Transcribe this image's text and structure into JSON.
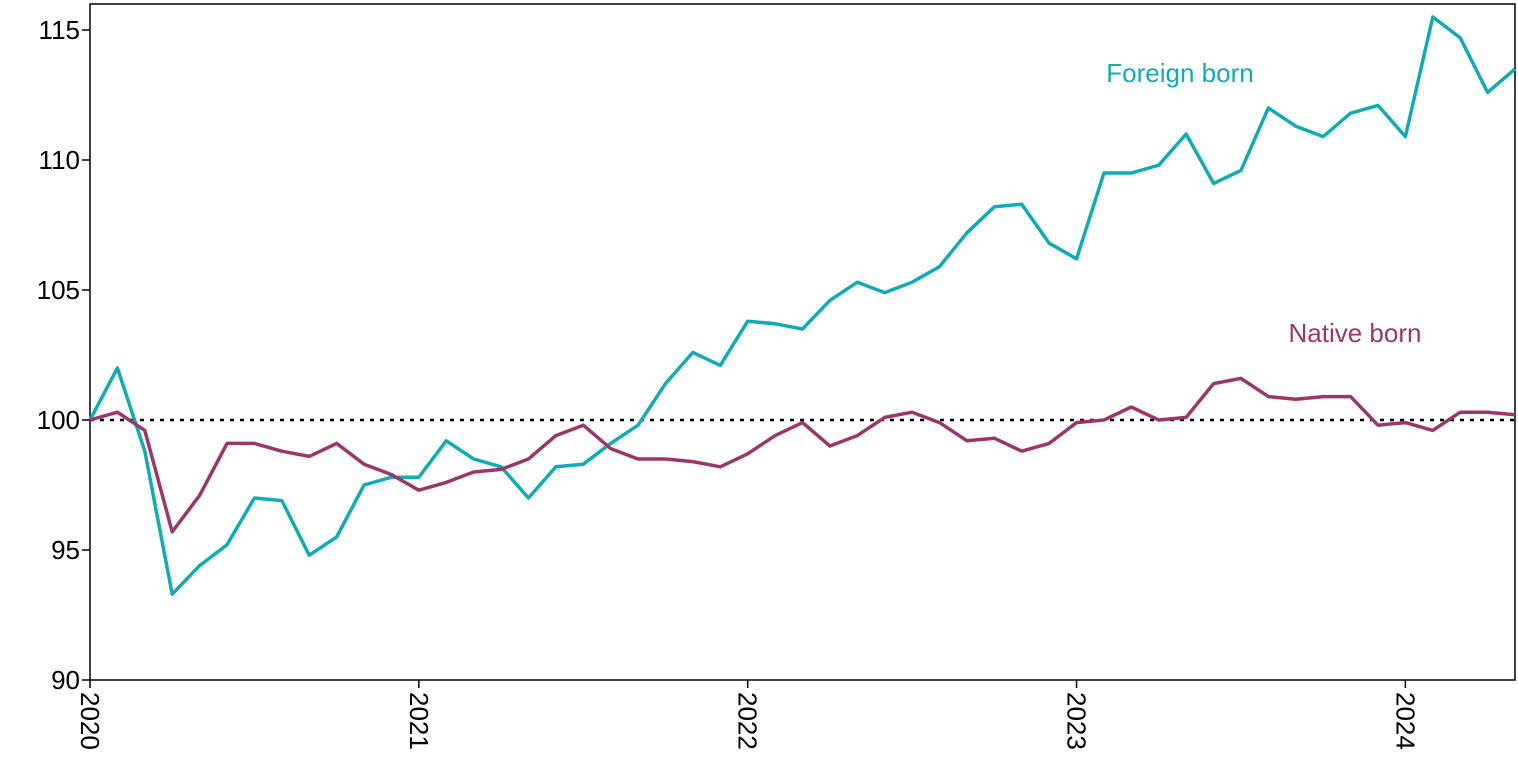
{
  "chart_data": {
    "type": "line",
    "x": [
      "2020-01",
      "2020-02",
      "2020-03",
      "2020-04",
      "2020-05",
      "2020-06",
      "2020-07",
      "2020-08",
      "2020-09",
      "2020-10",
      "2020-11",
      "2020-12",
      "2021-01",
      "2021-02",
      "2021-03",
      "2021-04",
      "2021-05",
      "2021-06",
      "2021-07",
      "2021-08",
      "2021-09",
      "2021-10",
      "2021-11",
      "2021-12",
      "2022-01",
      "2022-02",
      "2022-03",
      "2022-04",
      "2022-05",
      "2022-06",
      "2022-07",
      "2022-08",
      "2022-09",
      "2022-10",
      "2022-11",
      "2022-12",
      "2023-01",
      "2023-02",
      "2023-03",
      "2023-04",
      "2023-05",
      "2023-06",
      "2023-07",
      "2023-08",
      "2023-09",
      "2023-10",
      "2023-11",
      "2023-12",
      "2024-01",
      "2024-02",
      "2024-03",
      "2024-04",
      "2024-05"
    ],
    "series": [
      {
        "name": "Foreign born",
        "color": "#12aab5",
        "values": [
          100,
          102.0,
          98.8,
          93.3,
          94.4,
          95.2,
          97.0,
          96.9,
          94.8,
          95.5,
          97.5,
          97.8,
          97.8,
          99.2,
          98.5,
          98.2,
          97.0,
          98.2,
          98.3,
          99.1,
          99.8,
          101.4,
          102.6,
          102.1,
          103.8,
          103.7,
          103.5,
          104.6,
          105.3,
          104.9,
          105.3,
          105.9,
          107.2,
          108.2,
          108.3,
          106.8,
          106.2,
          109.5,
          109.5,
          109.8,
          111.0,
          109.1,
          109.6,
          112.0,
          111.3,
          110.9,
          111.8,
          112.1,
          110.9,
          115.5,
          114.7,
          112.6,
          113.5
        ]
      },
      {
        "name": "Native born",
        "color": "#9b3768",
        "values": [
          100,
          100.3,
          99.6,
          95.7,
          97.1,
          99.1,
          99.1,
          98.8,
          98.6,
          99.1,
          98.3,
          97.9,
          97.3,
          97.6,
          98.0,
          98.1,
          98.5,
          99.4,
          99.8,
          98.9,
          98.5,
          98.5,
          98.4,
          98.2,
          98.7,
          99.4,
          99.9,
          99.0,
          99.4,
          100.1,
          100.3,
          99.9,
          99.2,
          99.3,
          98.8,
          99.1,
          99.9,
          100.0,
          100.5,
          100.0,
          100.1,
          101.4,
          101.6,
          100.9,
          100.8,
          100.9,
          100.9,
          99.8,
          99.9,
          99.6,
          100.3,
          100.3,
          100.2
        ]
      }
    ],
    "xlim": [
      "2020-01",
      "2024-05"
    ],
    "xticks": [
      {
        "value": "2020-01",
        "label": "2020"
      },
      {
        "value": "2021-01",
        "label": "2021"
      },
      {
        "value": "2022-01",
        "label": "2022"
      },
      {
        "value": "2023-01",
        "label": "2023"
      },
      {
        "value": "2024-01",
        "label": "2024"
      }
    ],
    "ylim": [
      90,
      116
    ],
    "yticks": [
      90,
      95,
      100,
      105,
      110,
      115
    ],
    "reference_line": 100
  }
}
